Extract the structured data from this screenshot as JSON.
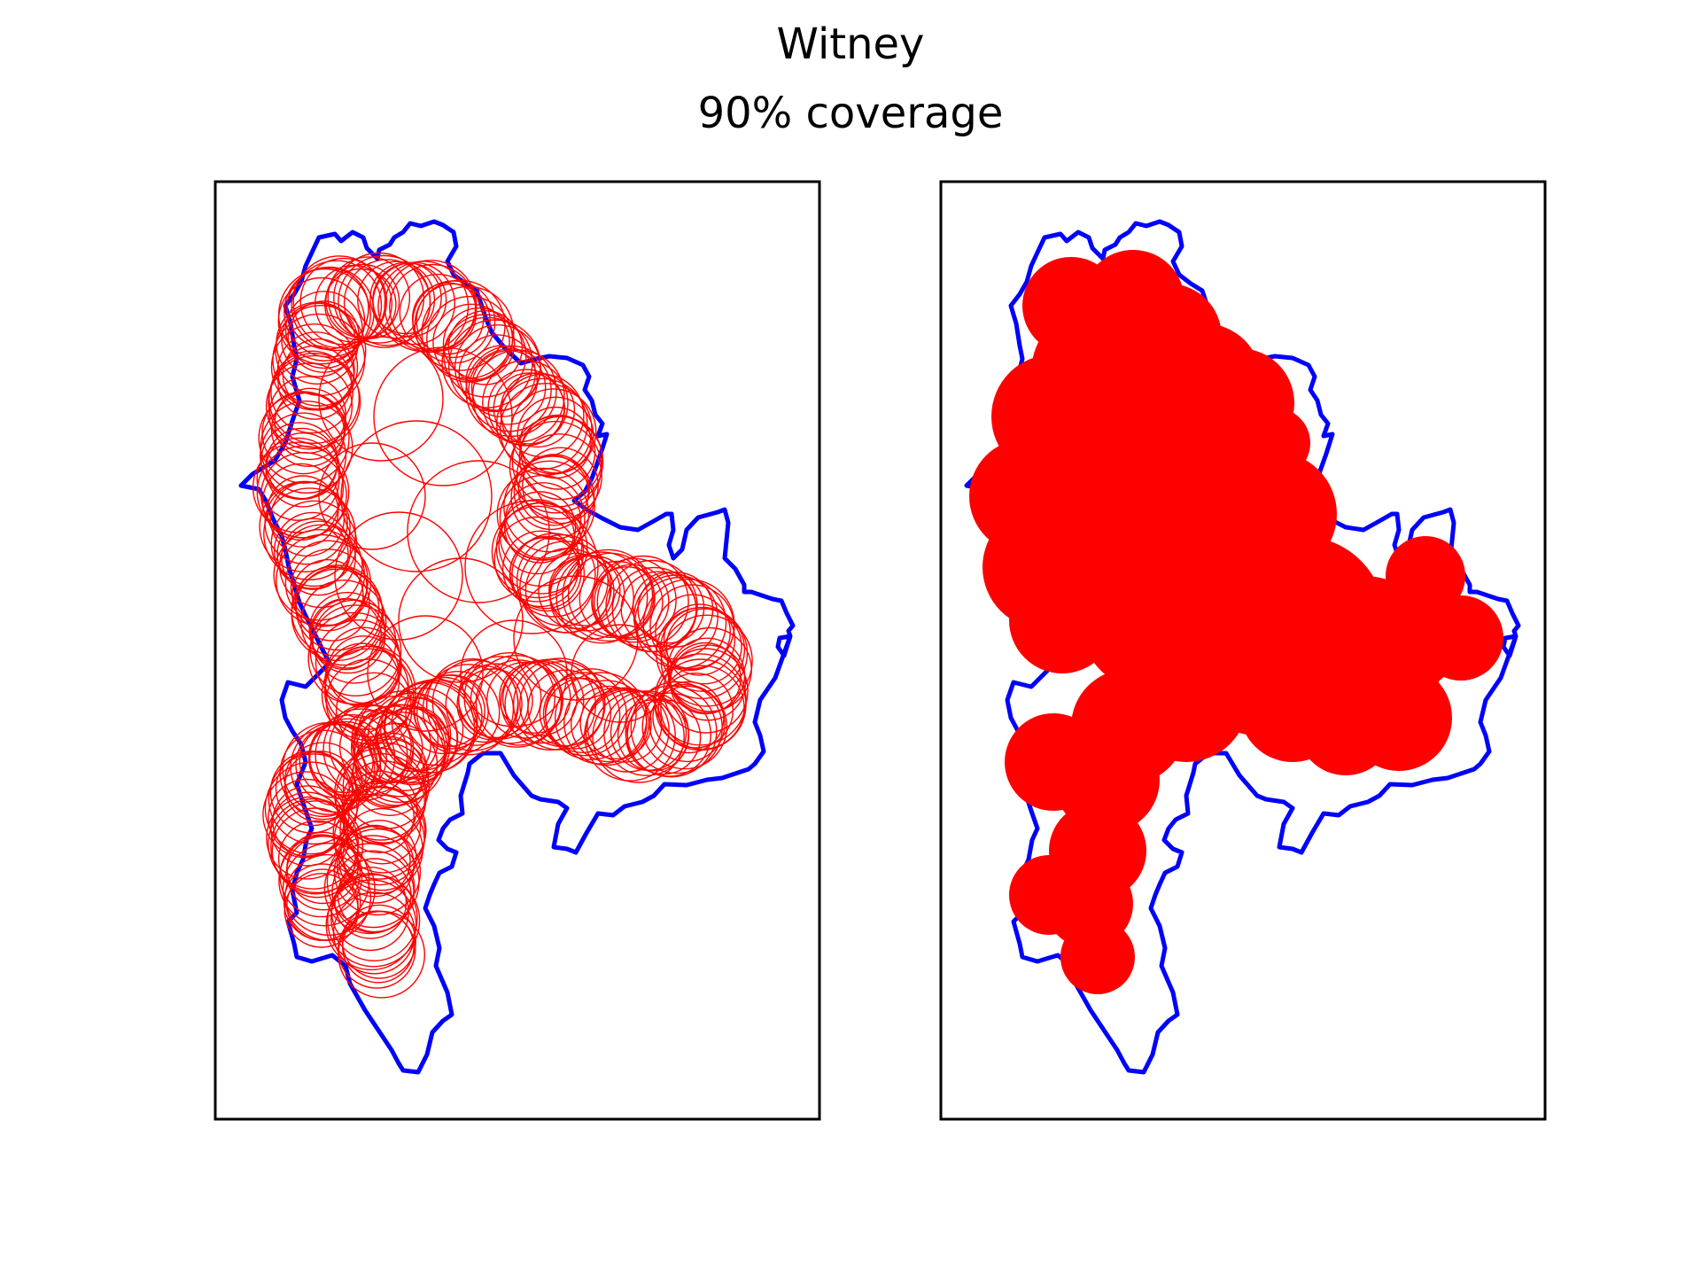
{
  "title": "Witney",
  "subtitle": "90% coverage",
  "colors": {
    "boundary": "#0000ff",
    "coverage": "#ff0000",
    "frame": "#000000",
    "background": "#ffffff"
  },
  "panels": [
    {
      "name": "circles-outline",
      "style": "outline"
    },
    {
      "name": "coverage-filled",
      "style": "filled"
    }
  ]
}
